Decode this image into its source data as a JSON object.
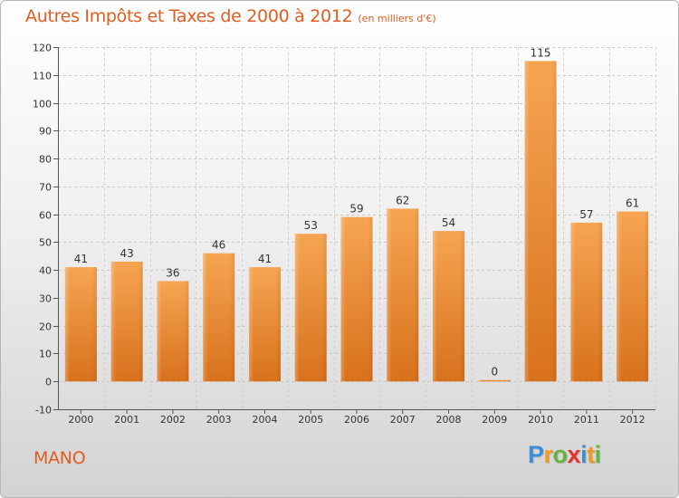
{
  "title": "Autres Impôts et Taxes de 2000 à 2012",
  "unit": "(en milliers d'€)",
  "commune": "MANO",
  "logo": {
    "letters": [
      "P",
      "r",
      "o",
      "x",
      "i",
      "t",
      "i"
    ],
    "colors": [
      "#3a8fd8",
      "#f09a1e",
      "#63b43a",
      "#e8322c",
      "#3a8fd8",
      "#f09a1e",
      "#63b43a"
    ]
  },
  "chart_data": {
    "type": "bar",
    "title": "Autres Impôts et Taxes de 2000 à 2012",
    "subtitle": "(en milliers d'€)",
    "categories": [
      "2000",
      "2001",
      "2002",
      "2003",
      "2004",
      "2005",
      "2006",
      "2007",
      "2008",
      "2009",
      "2010",
      "2011",
      "2012"
    ],
    "values": [
      41,
      43,
      36,
      46,
      41,
      53,
      59,
      62,
      54,
      0,
      115,
      57,
      61
    ],
    "ylim": [
      -10,
      120
    ],
    "yticks": [
      -10,
      0,
      10,
      20,
      30,
      40,
      50,
      60,
      70,
      80,
      90,
      100,
      110,
      120
    ],
    "grid": true,
    "bar_color": "#f0912f"
  }
}
